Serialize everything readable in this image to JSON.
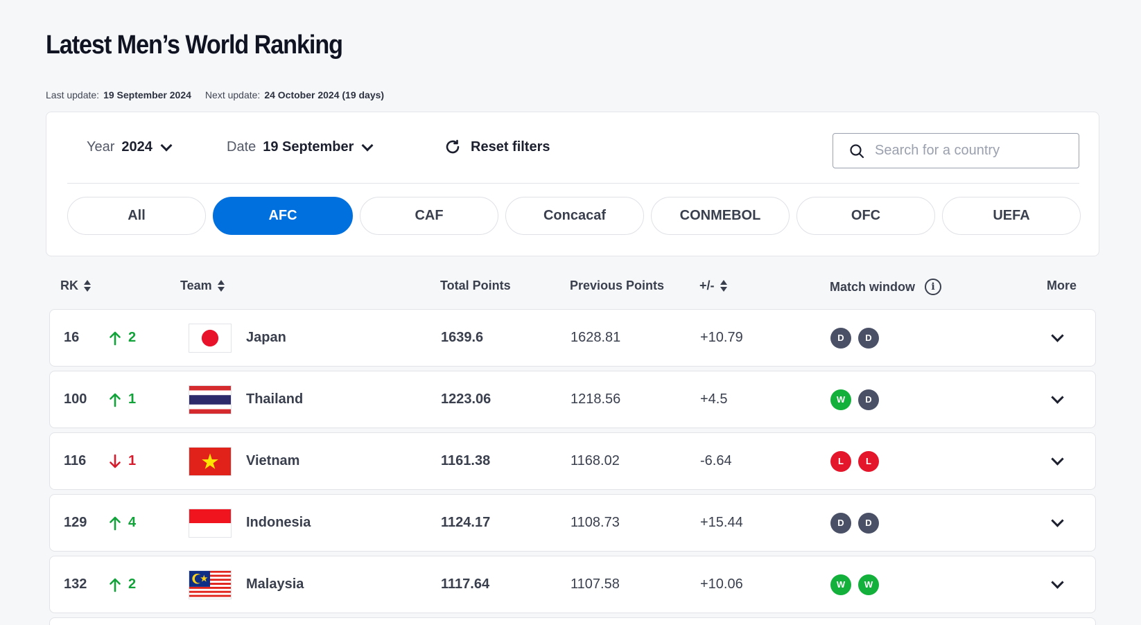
{
  "page": {
    "title": "Latest Men’s World Ranking",
    "last_update_label": "Last update:",
    "last_update_value": "19 September 2024",
    "next_update_label": "Next update:",
    "next_update_value": "24 October 2024 (19 days)"
  },
  "filters": {
    "year_label": "Year",
    "year_value": "2024",
    "date_label": "Date",
    "date_value": "19 September",
    "reset_label": "Reset filters",
    "search_placeholder": "Search for a country",
    "search_value": ""
  },
  "confederations": [
    {
      "label": "All",
      "active": false
    },
    {
      "label": "AFC",
      "active": true
    },
    {
      "label": "CAF",
      "active": false
    },
    {
      "label": "Concacaf",
      "active": false
    },
    {
      "label": "CONMEBOL",
      "active": false
    },
    {
      "label": "OFC",
      "active": false
    },
    {
      "label": "UEFA",
      "active": false
    }
  ],
  "table": {
    "headers": {
      "rank": "RK",
      "team": "Team",
      "total_points": "Total Points",
      "previous_points": "Previous Points",
      "diff": "+/-",
      "match_window": "Match window",
      "more": "More"
    },
    "rows": [
      {
        "rank": "16",
        "direction": "up",
        "move": "2",
        "team": "Japan",
        "flag": "japan-flag",
        "total": "1639.6",
        "previous": "1628.81",
        "diff": "+10.79",
        "results": [
          "D",
          "D"
        ]
      },
      {
        "rank": "100",
        "direction": "up",
        "move": "1",
        "team": "Thailand",
        "flag": "thailand-flag",
        "total": "1223.06",
        "previous": "1218.56",
        "diff": "+4.5",
        "results": [
          "W",
          "D"
        ]
      },
      {
        "rank": "116",
        "direction": "down",
        "move": "1",
        "team": "Vietnam",
        "flag": "vietnam-flag",
        "total": "1161.38",
        "previous": "1168.02",
        "diff": "-6.64",
        "results": [
          "L",
          "L"
        ]
      },
      {
        "rank": "129",
        "direction": "up",
        "move": "4",
        "team": "Indonesia",
        "flag": "indonesia-flag",
        "total": "1124.17",
        "previous": "1108.73",
        "diff": "+15.44",
        "results": [
          "D",
          "D"
        ]
      },
      {
        "rank": "132",
        "direction": "up",
        "move": "2",
        "team": "Malaysia",
        "flag": "malaysia-flag",
        "total": "1117.64",
        "previous": "1107.58",
        "diff": "+10.06",
        "results": [
          "W",
          "W"
        ]
      }
    ]
  },
  "colors": {
    "accent": "#0070df",
    "up": "#12a23a",
    "down": "#d61b2c",
    "draw": "#4a5066",
    "win": "#13b03c",
    "loss": "#e3162b"
  }
}
